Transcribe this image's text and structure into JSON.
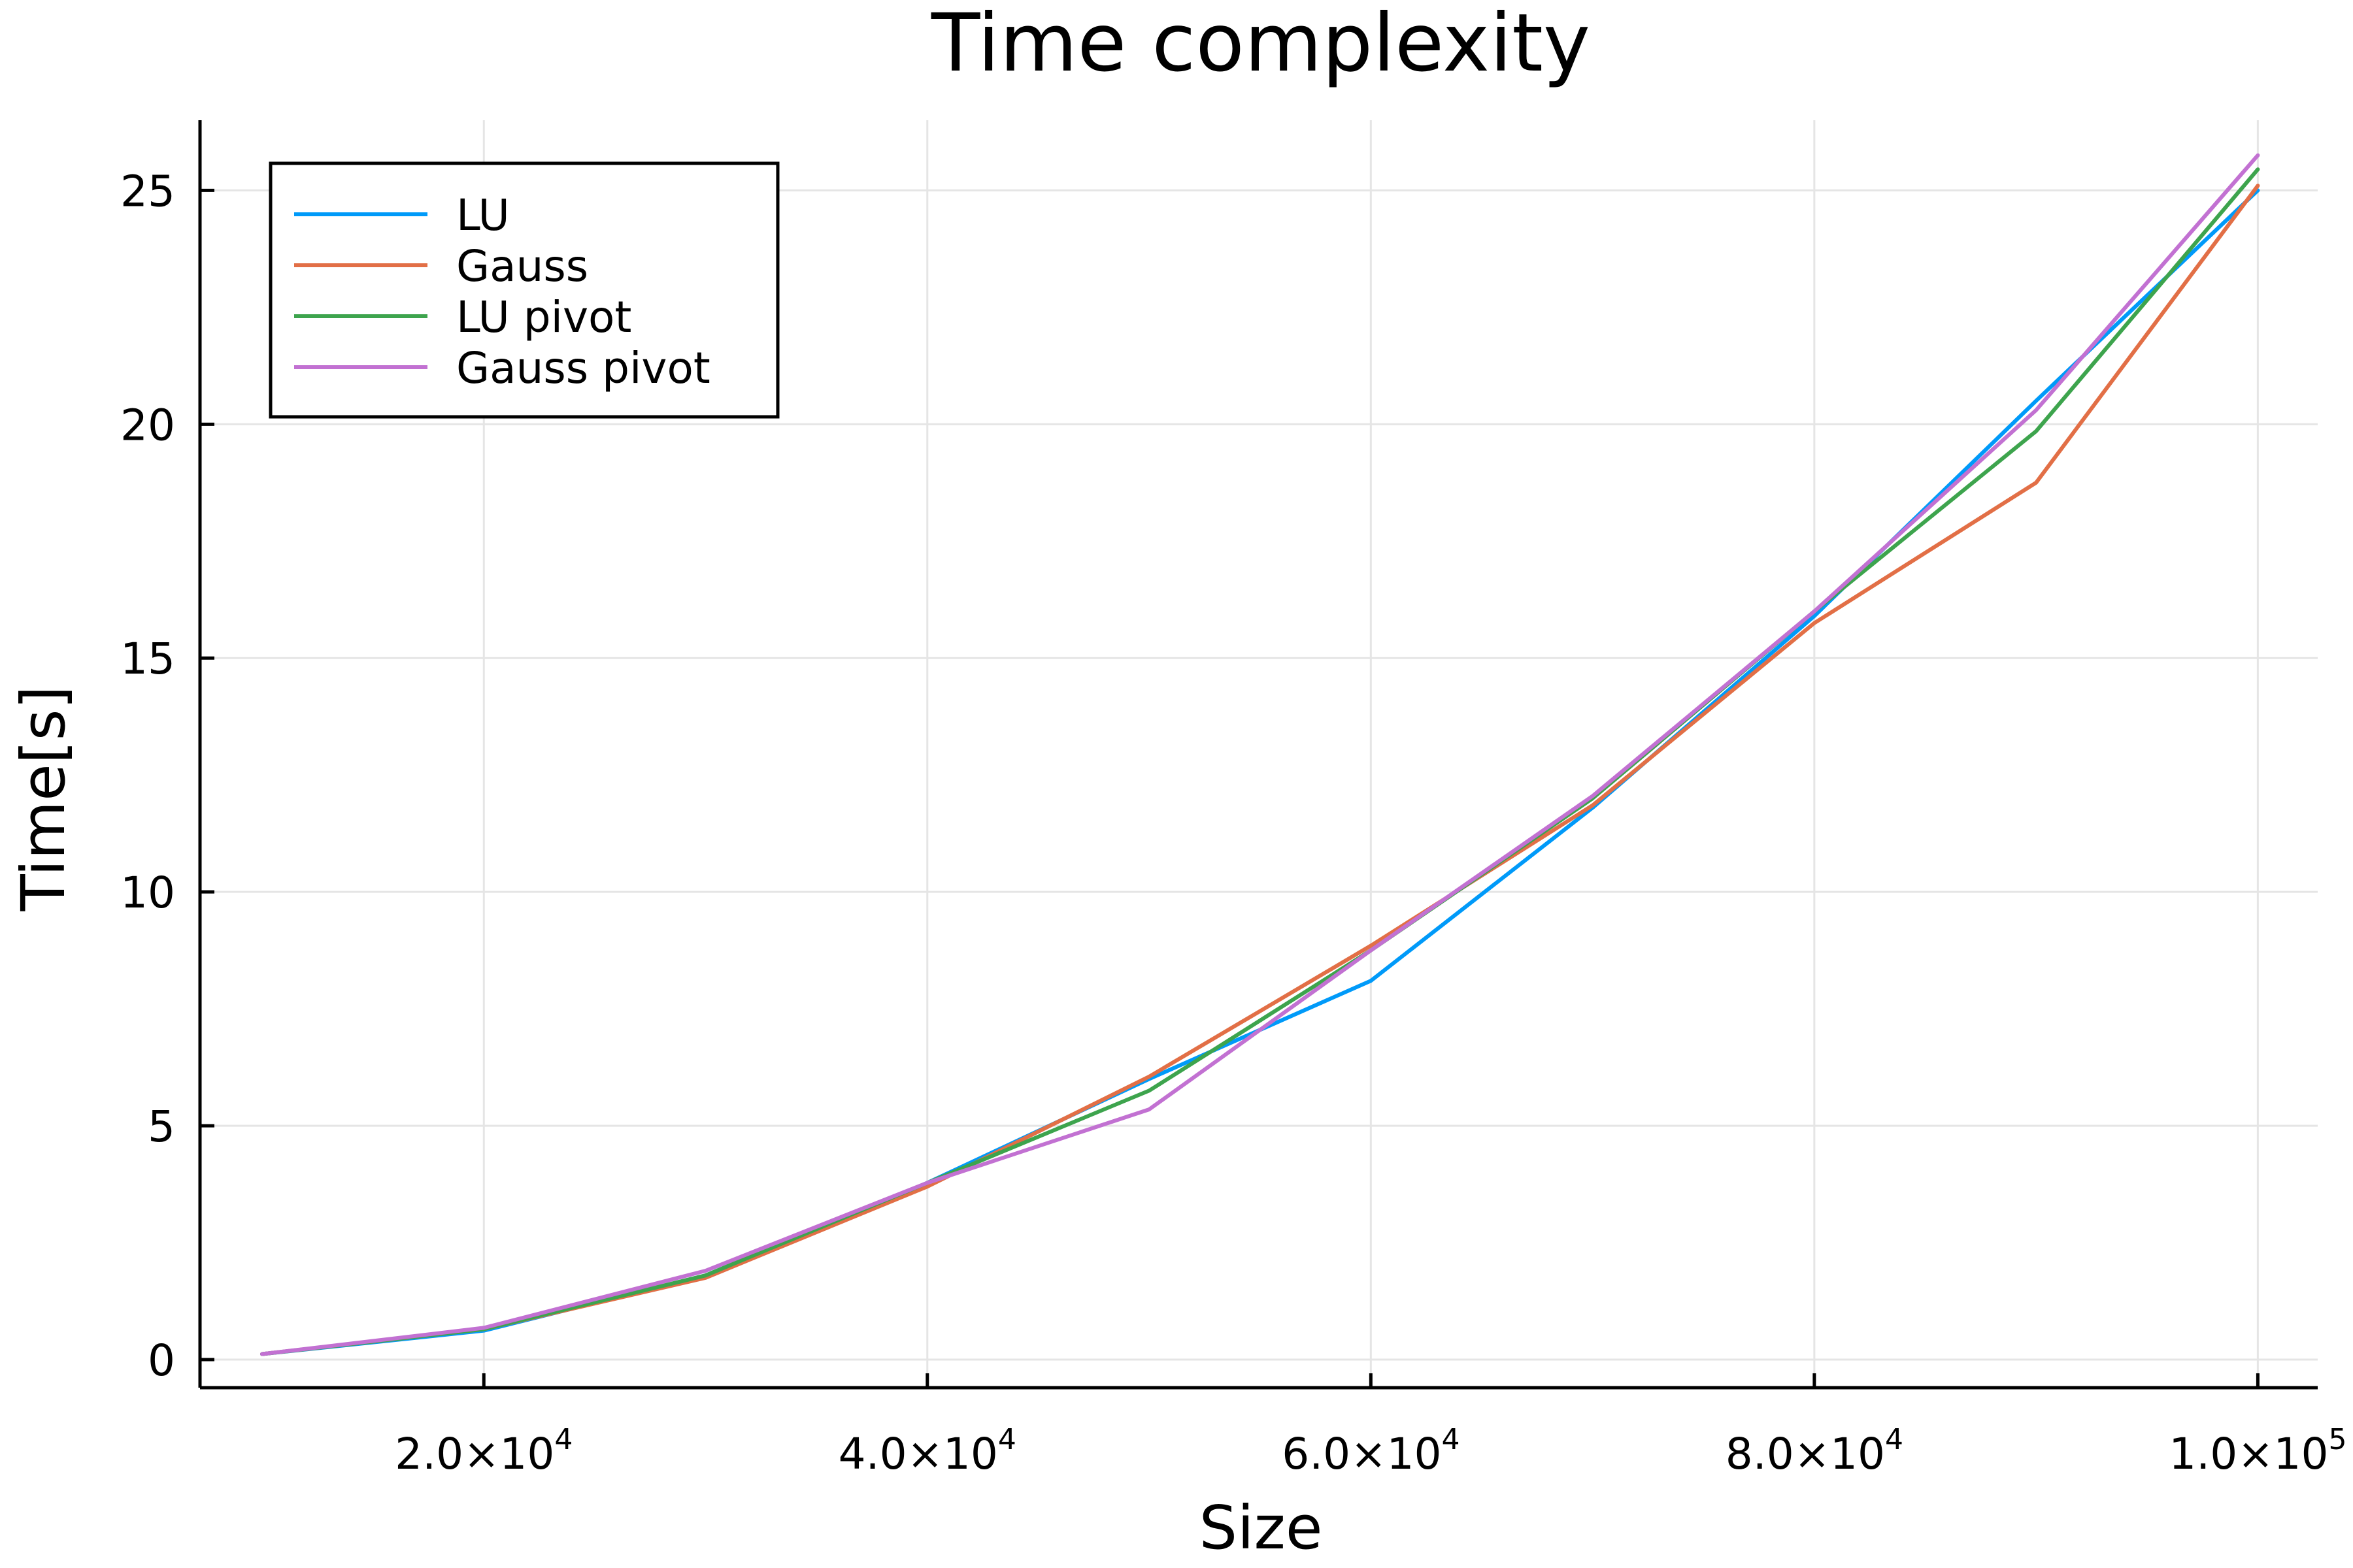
{
  "chart_data": {
    "type": "line",
    "title": "Time complexity",
    "xlabel": "Size",
    "ylabel": "Time[s]",
    "x": [
      10000,
      20000,
      30000,
      40000,
      50000,
      60000,
      70000,
      80000,
      90000,
      100000
    ],
    "xlim": [
      7200,
      102700
    ],
    "ylim": [
      -0.6,
      26.5
    ],
    "xticks": [
      {
        "value": 20000,
        "mantissa": "2.0×10",
        "exponent": "4"
      },
      {
        "value": 40000,
        "mantissa": "4.0×10",
        "exponent": "4"
      },
      {
        "value": 60000,
        "mantissa": "6.0×10",
        "exponent": "4"
      },
      {
        "value": 80000,
        "mantissa": "8.0×10",
        "exponent": "4"
      },
      {
        "value": 100000,
        "mantissa": "1.0×10",
        "exponent": "5"
      }
    ],
    "yticks": [
      {
        "value": 0,
        "label": "0"
      },
      {
        "value": 5,
        "label": "5"
      },
      {
        "value": 10,
        "label": "10"
      },
      {
        "value": 15,
        "label": "15"
      },
      {
        "value": 20,
        "label": "20"
      },
      {
        "value": 25,
        "label": "25"
      }
    ],
    "grid": true,
    "legend_position": "top-left",
    "series": [
      {
        "name": "LU",
        "color": "#009af9",
        "values": [
          0.12,
          0.62,
          1.8,
          3.78,
          6.0,
          8.1,
          11.8,
          15.9,
          20.5,
          25.0
        ]
      },
      {
        "name": "Gauss",
        "color": "#e26f46",
        "values": [
          0.12,
          0.65,
          1.75,
          3.7,
          6.05,
          8.85,
          11.85,
          15.75,
          18.75,
          25.1
        ]
      },
      {
        "name": "LU pivot",
        "color": "#3da44d",
        "values": [
          0.12,
          0.65,
          1.8,
          3.78,
          5.75,
          8.75,
          12.0,
          16.0,
          19.85,
          25.45
        ]
      },
      {
        "name": "Gauss pivot",
        "color": "#c271d2",
        "values": [
          0.12,
          0.68,
          1.9,
          3.78,
          5.35,
          8.75,
          12.05,
          16.0,
          20.3,
          25.75
        ]
      }
    ]
  }
}
